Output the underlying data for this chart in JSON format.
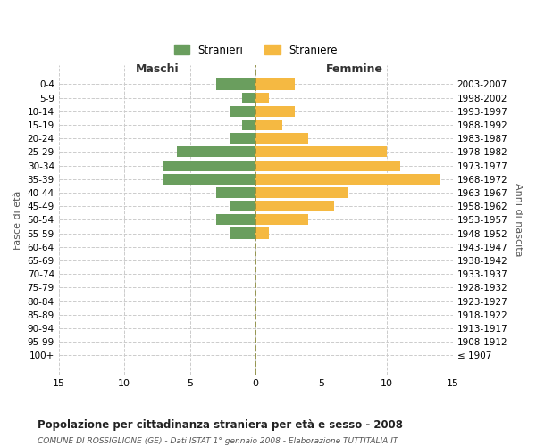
{
  "age_groups": [
    "100+",
    "95-99",
    "90-94",
    "85-89",
    "80-84",
    "75-79",
    "70-74",
    "65-69",
    "60-64",
    "55-59",
    "50-54",
    "45-49",
    "40-44",
    "35-39",
    "30-34",
    "25-29",
    "20-24",
    "15-19",
    "10-14",
    "5-9",
    "0-4"
  ],
  "birth_years": [
    "≤ 1907",
    "1908-1912",
    "1913-1917",
    "1918-1922",
    "1923-1927",
    "1928-1932",
    "1933-1937",
    "1938-1942",
    "1943-1947",
    "1948-1952",
    "1953-1957",
    "1958-1962",
    "1963-1967",
    "1968-1972",
    "1973-1977",
    "1978-1982",
    "1983-1987",
    "1988-1992",
    "1993-1997",
    "1998-2002",
    "2003-2007"
  ],
  "males": [
    0,
    0,
    0,
    0,
    0,
    0,
    0,
    0,
    0,
    2,
    3,
    2,
    3,
    7,
    7,
    6,
    2,
    1,
    2,
    1,
    3
  ],
  "females": [
    0,
    0,
    0,
    0,
    0,
    0,
    0,
    0,
    0,
    1,
    4,
    6,
    7,
    14,
    11,
    10,
    4,
    2,
    3,
    1,
    3
  ],
  "male_color": "#6a9e5e",
  "female_color": "#f5b942",
  "center_line_color": "#8b8b3a",
  "grid_color": "#cccccc",
  "xlim": [
    -15,
    15
  ],
  "xticks": [
    -15,
    -10,
    -5,
    0,
    5,
    10,
    15
  ],
  "xticklabels": [
    "15",
    "10",
    "5",
    "0",
    "5",
    "10",
    "15"
  ],
  "title": "Popolazione per cittadinanza straniera per età e sesso - 2008",
  "subtitle": "COMUNE DI ROSSIGLIONE (GE) - Dati ISTAT 1° gennaio 2008 - Elaborazione TUTTITALIA.IT",
  "ylabel_left": "Fasce di età",
  "ylabel_right": "Anni di nascita",
  "label_maschi": "Maschi",
  "label_femmine": "Femmine",
  "legend_stranieri": "Stranieri",
  "legend_straniere": "Straniere",
  "bar_height": 0.8
}
